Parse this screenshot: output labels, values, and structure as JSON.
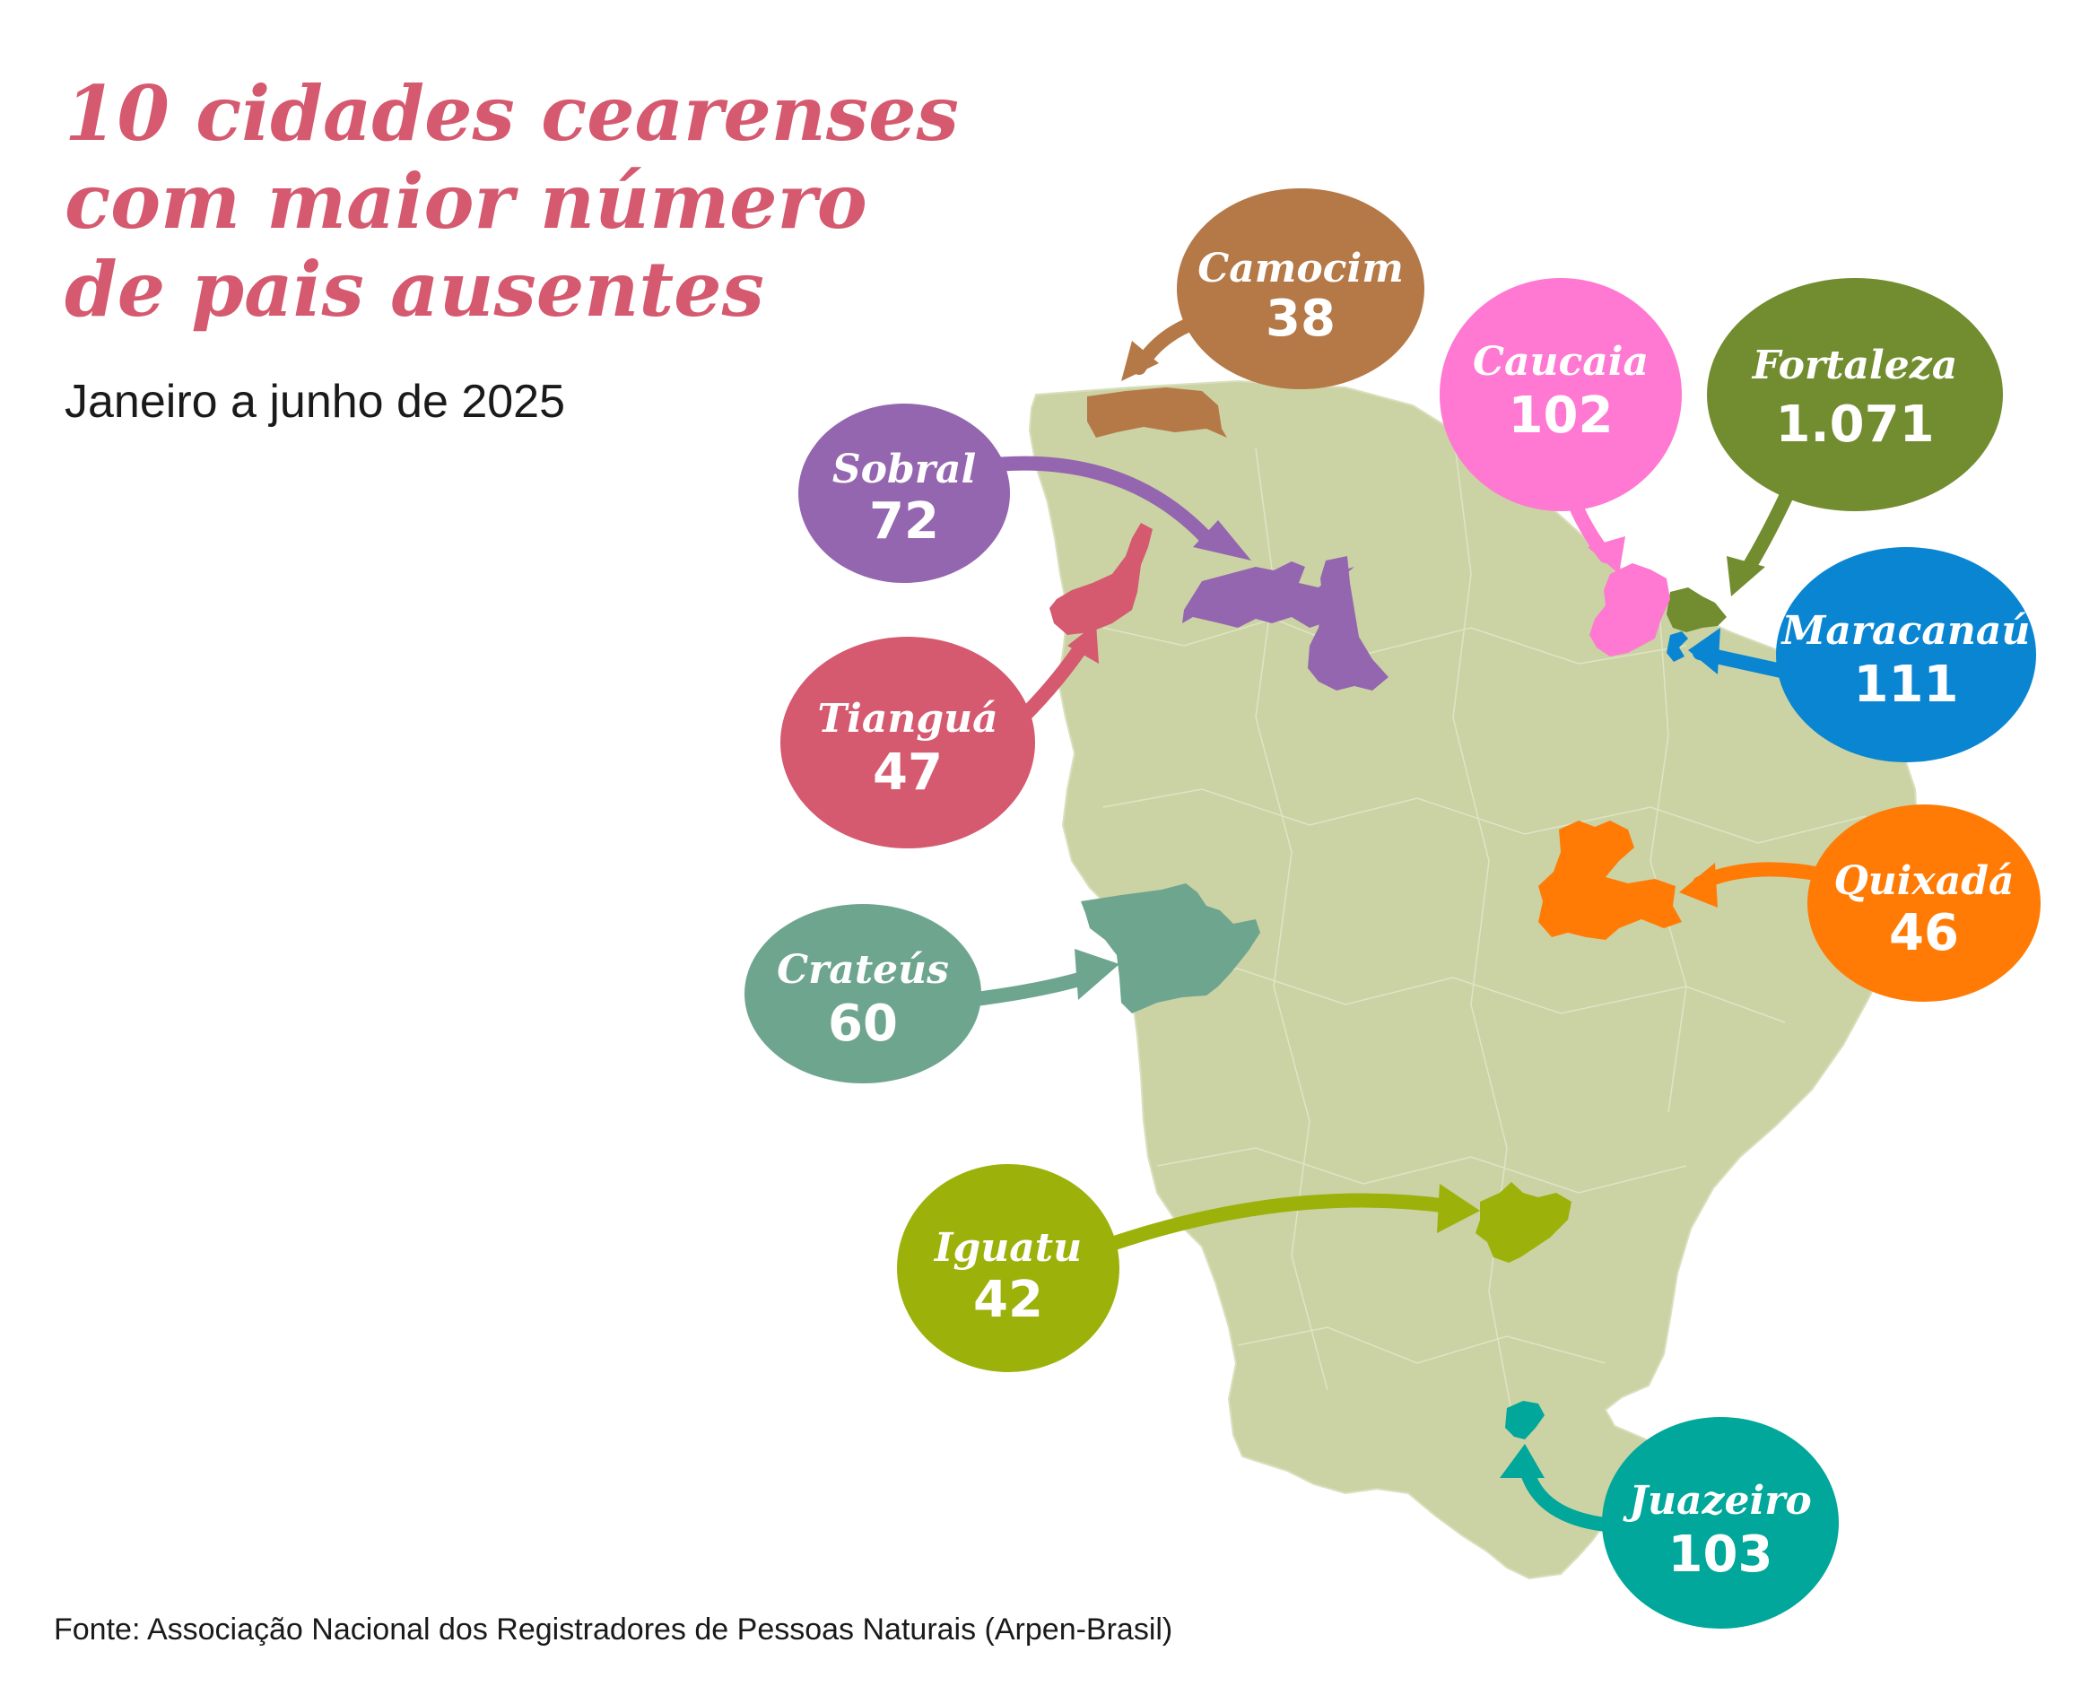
{
  "title": {
    "line1": "10 cidades cearenses",
    "line2": "com maior número",
    "line3": "de pais ausentes"
  },
  "subtitle": "Janeiro a junho de 2025",
  "source": "Fonte: Associação Nacional dos Registradores de Pessoas Naturais (Arpen-Brasil)",
  "map": {
    "region_color": "#cbd3a4",
    "cities": [
      {
        "id": "camocim",
        "name": "Camocim",
        "value": "38",
        "color": "#b57847"
      },
      {
        "id": "sobral",
        "name": "Sobral",
        "value": "72",
        "color": "#9466b0"
      },
      {
        "id": "tiangua",
        "name": "Tianguá",
        "value": "47",
        "color": "#d5596f"
      },
      {
        "id": "crateus",
        "name": "Crateús",
        "value": "60",
        "color": "#6ea58e"
      },
      {
        "id": "iguatu",
        "name": "Iguatu",
        "value": "42",
        "color": "#9db10b"
      },
      {
        "id": "juazeiro",
        "name": "Juazeiro",
        "value": "103",
        "color": "#00a79a"
      },
      {
        "id": "quixada",
        "name": "Quixadá",
        "value": "46",
        "color": "#ff7b05"
      },
      {
        "id": "maracanau",
        "name": "Maracanaú",
        "value": "111",
        "color": "#0985d2"
      },
      {
        "id": "fortaleza",
        "name": "Fortaleza",
        "value": "1.071",
        "color": "#728c30"
      },
      {
        "id": "caucaia",
        "name": "Caucaia",
        "value": "102",
        "color": "#ff78d2"
      }
    ]
  }
}
